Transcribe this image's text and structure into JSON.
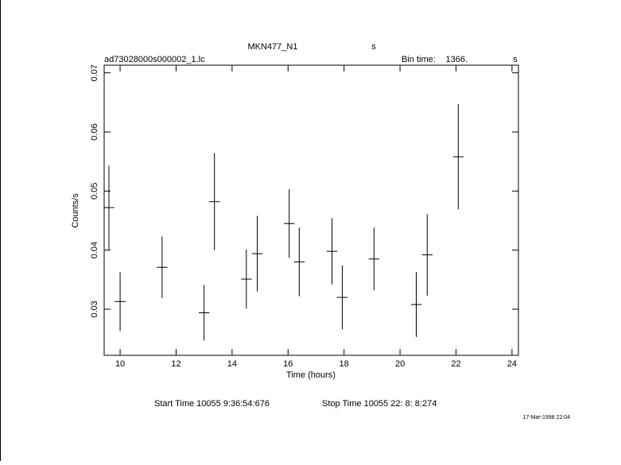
{
  "chart_data": {
    "type": "errorbar",
    "title": "MKN477_N1",
    "title_unit": "s",
    "subtitle": "ad73028000s000002_1.lc",
    "bin_label": "Bin time:",
    "bin_value": "1366.",
    "bin_unit": "s",
    "xlabel": "Time (hours)",
    "ylabel": "Counts/s",
    "start_time": "Start Time 10055  9:36:54:676",
    "stop_time": "Stop Time 10055 22: 8: 8:274",
    "timestamp": "17-Mar-1998 22:04",
    "x": [
      9.6,
      10.0,
      11.5,
      13.0,
      13.37,
      14.51,
      14.9,
      16.04,
      16.4,
      17.57,
      17.94,
      19.07,
      20.58,
      20.97,
      22.08
    ],
    "xerr": [
      0.19,
      0.19,
      0.19,
      0.19,
      0.19,
      0.19,
      0.19,
      0.19,
      0.19,
      0.19,
      0.19,
      0.19,
      0.19,
      0.19,
      0.19
    ],
    "series": [
      {
        "color": "#000000",
        "values": [
          0.0472,
          0.0313,
          0.0371,
          0.0294,
          0.0482,
          0.0351,
          0.0394,
          0.0445,
          0.038,
          0.0398,
          0.032,
          0.0385,
          0.0308,
          0.0392,
          0.0558
        ],
        "yerr": [
          0.0071,
          0.005,
          0.0052,
          0.0047,
          0.0082,
          0.005,
          0.0064,
          0.0058,
          0.0058,
          0.0056,
          0.0054,
          0.0053,
          0.0055,
          0.0069,
          0.0089
        ]
      }
    ],
    "xlim": [
      9.43,
      24.23
    ],
    "ylim": [
      0.0222,
      0.0713
    ],
    "xticks": [
      10,
      12,
      14,
      16,
      18,
      20,
      22,
      24
    ],
    "yticks": [
      0.03,
      0.04,
      0.05,
      0.06,
      0.07
    ]
  }
}
